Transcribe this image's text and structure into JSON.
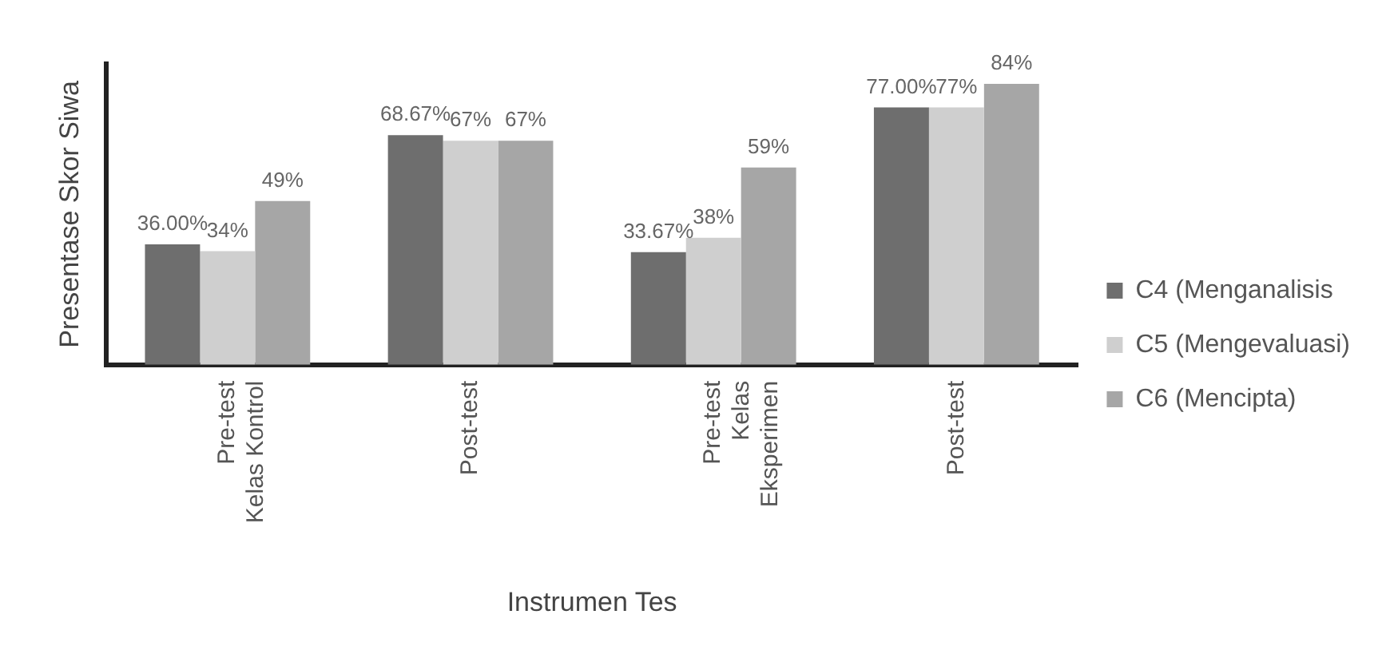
{
  "chart_data": {
    "type": "bar",
    "xlabel": "Instrumen Tes",
    "ylabel": "Presentase Skor Siwa",
    "categories": [
      "Pre-test\nKelas Kontrol",
      "Post-test",
      "Pre-test\nKelas\nEksperimen",
      "Post-test"
    ],
    "series": [
      {
        "name": "C4 (Menganalisis",
        "color": "#6e6e6e",
        "values": [
          36,
          68.67,
          33.67,
          77
        ],
        "value_labels": [
          "36.00%",
          "68.67%",
          "33.67%",
          "77.00%"
        ]
      },
      {
        "name": "C5 (Mengevaluasi)",
        "color": "#cfcfcf",
        "values": [
          34,
          67,
          38,
          77
        ],
        "value_labels": [
          "34%",
          "67%",
          "38%",
          "77%"
        ]
      },
      {
        "name": "C6 (Mencipta)",
        "color": "#a6a6a6",
        "values": [
          49,
          67,
          59,
          84
        ],
        "value_labels": [
          "49%",
          "67%",
          "59%",
          "84%"
        ]
      }
    ],
    "relative": false,
    "tick_labels": "x",
    "legend": "right",
    "grid": false
  }
}
